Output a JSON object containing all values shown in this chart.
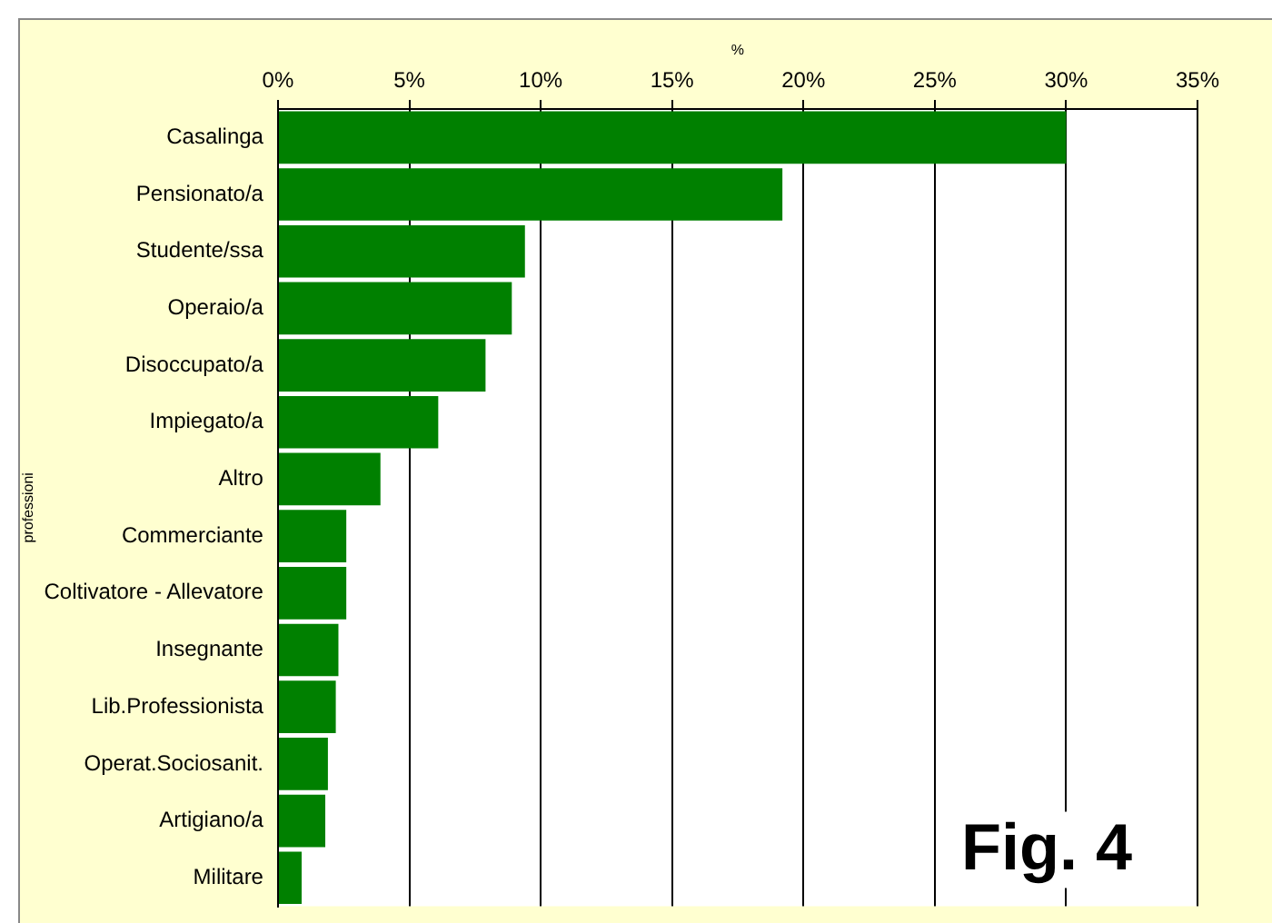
{
  "chart_data": {
    "type": "bar",
    "orientation": "horizontal",
    "xlabel": "%",
    "ylabel": "professioni",
    "categories": [
      "Casalinga",
      "Pensionato/a",
      "Studente/ssa",
      "Operaio/a",
      "Disoccupato/a",
      "Impiegato/a",
      "Altro",
      "Commerciante",
      "Coltivatore - Allevatore",
      "Insegnante",
      "Lib.Professionista",
      "Operat.Sociosanit.",
      "Artigiano/a",
      "Militare"
    ],
    "values": [
      30.0,
      19.2,
      9.4,
      8.9,
      7.9,
      6.1,
      3.9,
      2.6,
      2.6,
      2.3,
      2.2,
      1.9,
      1.8,
      0.9
    ],
    "color": "#008000",
    "xlim": [
      0,
      35
    ],
    "xticks": [
      {
        "value": 0,
        "label": "0%"
      },
      {
        "value": 5,
        "label": "5%"
      },
      {
        "value": 10,
        "label": "10%"
      },
      {
        "value": 15,
        "label": "15%"
      },
      {
        "value": 20,
        "label": "20%"
      },
      {
        "value": 25,
        "label": "25%"
      },
      {
        "value": 30,
        "label": "30%"
      },
      {
        "value": 35,
        "label": "35%"
      }
    ],
    "grid": "x",
    "legend": false,
    "annotations": [
      "Fig. 4"
    ]
  }
}
